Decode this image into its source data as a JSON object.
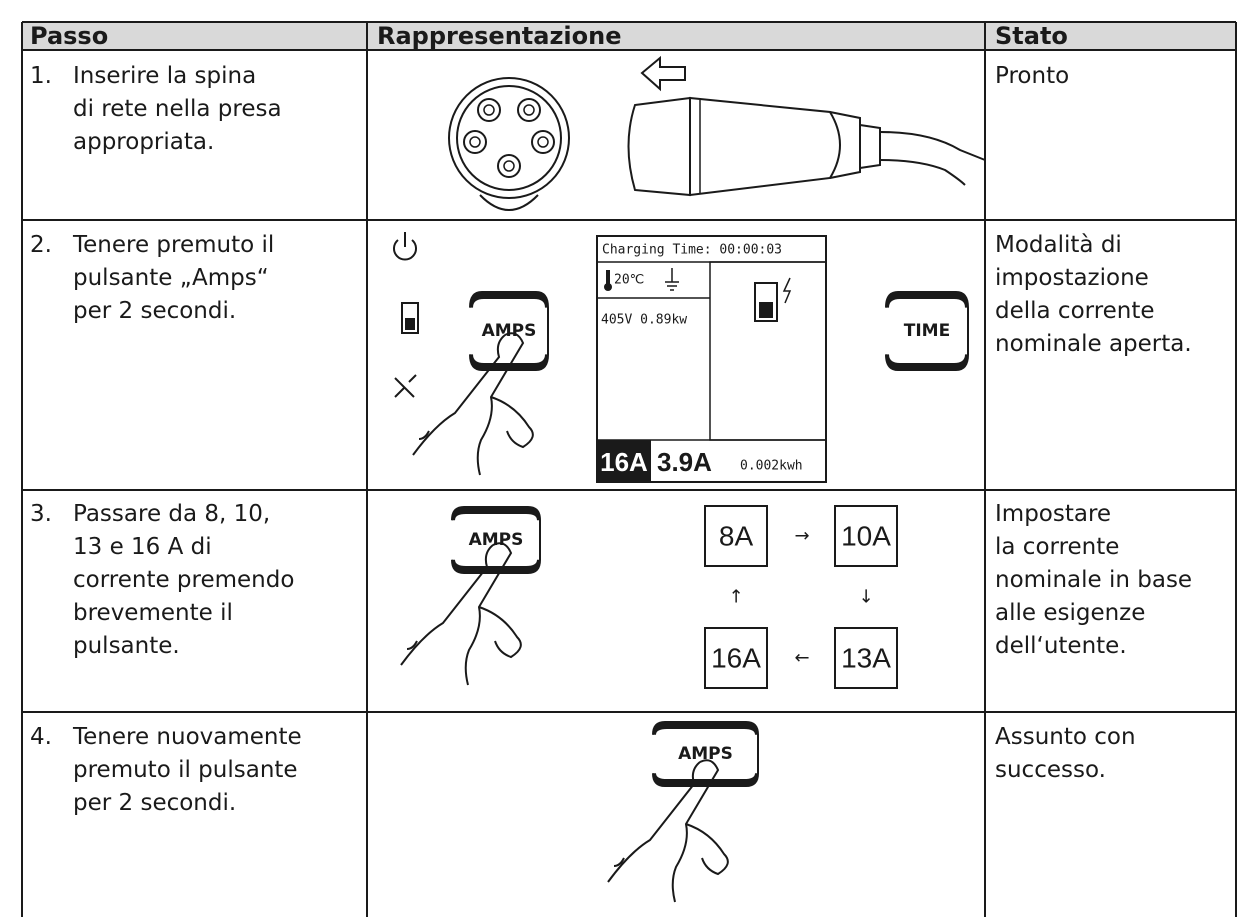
{
  "table": {
    "headers": [
      "Passo",
      "Rappresentazione",
      "Stato"
    ],
    "rows": [
      {
        "number": "1.",
        "step": [
          "Inserire la spina",
          "di rete nella presa",
          "appropriata."
        ],
        "state": [
          "Pronto"
        ]
      },
      {
        "number": "2.",
        "step": [
          "Tenere premuto il",
          "pulsante „Amps“",
          "per 2 secondi."
        ],
        "state": [
          "Modalità di",
          "impostazione",
          "della corrente",
          "nominale aperta."
        ]
      },
      {
        "number": "3.",
        "step": [
          "Passare da 8, 10,",
          "13 e 16 A di",
          "corrente premendo",
          "brevemente il",
          "pulsante."
        ],
        "state": [
          "Impostare",
          "la corrente",
          "nominale in base",
          "alle esigenze",
          "dell‘utente."
        ]
      },
      {
        "number": "4.",
        "step": [
          "Tenere nuovamente",
          "premuto il pulsante",
          "per 2 secondi."
        ],
        "state": [
          "Assunto con",
          "successo."
        ]
      }
    ]
  },
  "illustrations": {
    "row2": {
      "button_left": "AMPS",
      "button_right": "TIME",
      "display": {
        "charging_time": "Charging Time: 00:00:03",
        "temperature": "20℃",
        "power": "405V 0.89kw",
        "set_current": "16A",
        "actual_current": "3.9A",
        "energy": "0.002kwh"
      }
    },
    "row3": {
      "button": "AMPS",
      "cycle": [
        "8A",
        "10A",
        "13A",
        "16A"
      ],
      "arrows": [
        "→",
        "↓",
        "←",
        "↑"
      ]
    },
    "row4": {
      "button": "AMPS"
    }
  }
}
